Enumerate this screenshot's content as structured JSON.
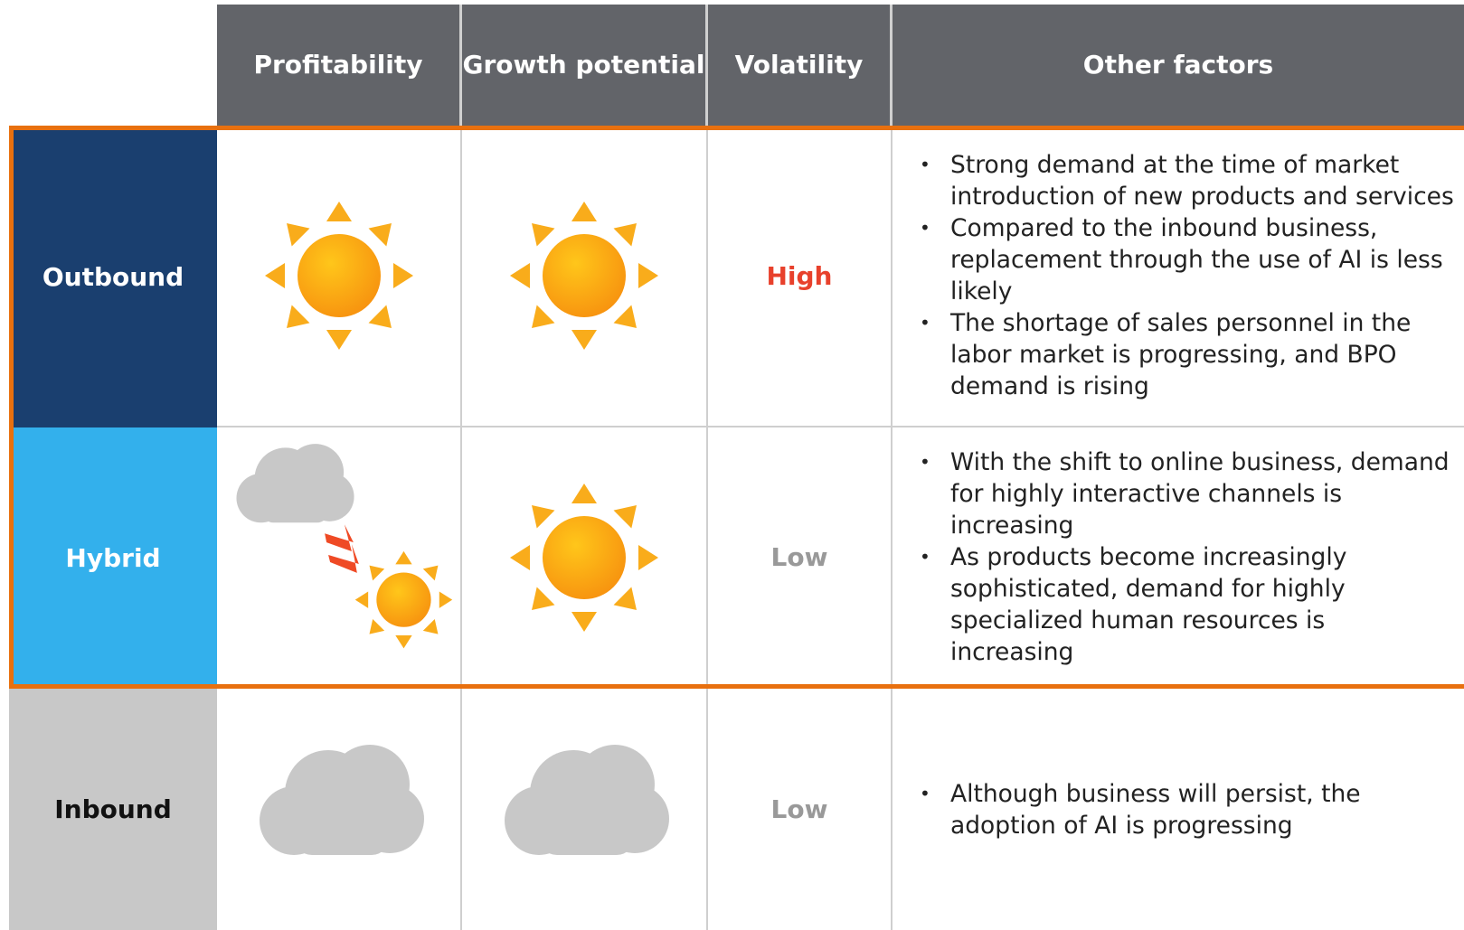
{
  "header": {
    "columns": [
      "Profitability",
      "Growth potential",
      "Volatility",
      "Other factors"
    ]
  },
  "rows": [
    {
      "label": "Outbound",
      "volatility": "High",
      "factors": [
        "Strong demand at the time of market introduction of new products and services",
        "Compared to the inbound business, replacement through the use of AI is less likely",
        "The shortage of sales personnel in the labor market is progressing, and BPO demand is rising"
      ]
    },
    {
      "label": "Hybrid",
      "volatility": "Low",
      "factors": [
        "With the shift to online business, demand for highly interactive channels is increasing",
        "As products become increasingly sophisticated, demand for highly specialized human resources is increasing"
      ]
    },
    {
      "label": "Inbound",
      "volatility": "Low",
      "factors": [
        "Although business will persist, the adoption of AI is progressing"
      ]
    }
  ]
}
